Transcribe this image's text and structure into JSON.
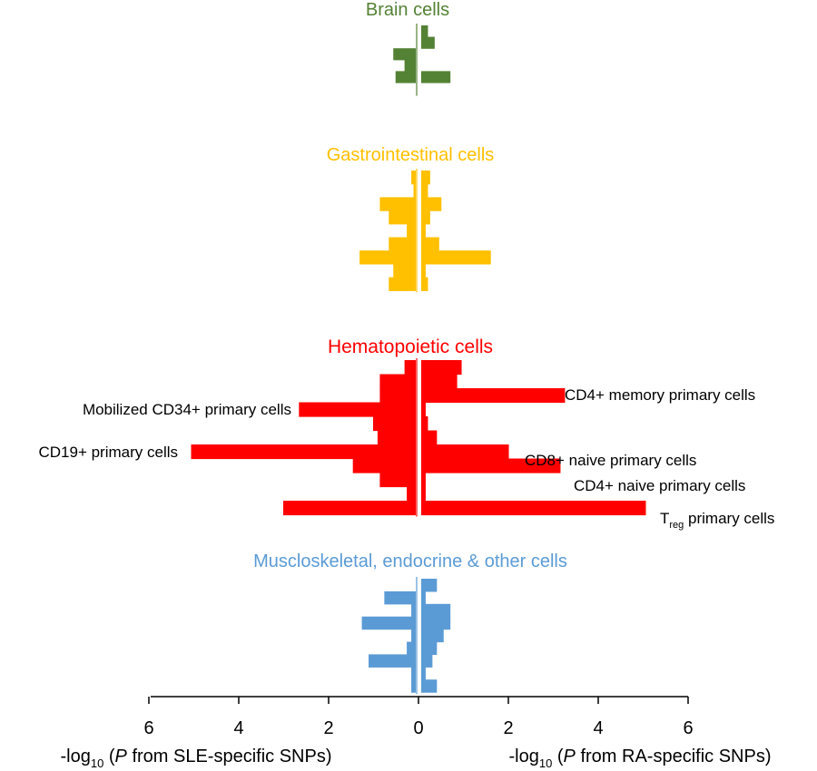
{
  "chart_data": {
    "type": "bar",
    "orientation": "horizontal",
    "layout": "back-to-back",
    "left_series": {
      "name": "SLE-specific SNPs",
      "axis_label_parts": [
        "-log",
        "10",
        " (",
        "P",
        " from SLE-specific SNPs)"
      ]
    },
    "right_series": {
      "name": "RA-specific SNPs",
      "axis_label_parts": [
        "-log",
        "10",
        " (",
        "P",
        " from RA-specific SNPs)"
      ]
    },
    "x_ticks": [
      "6",
      "4",
      "2",
      "0",
      "2",
      "4",
      "6"
    ],
    "x_range": [
      -6,
      6
    ],
    "grid": false,
    "groups": [
      {
        "title": "Brain cells",
        "color": "#548235",
        "left": [
          0,
          0,
          0.5,
          0.25,
          0.45,
          0
        ],
        "right": [
          0.15,
          0.3,
          0,
          0,
          0.65,
          0
        ]
      },
      {
        "title": "Gastrointestinal cells",
        "color": "#FFC000",
        "left": [
          0.1,
          0.05,
          0.8,
          0.6,
          0.2,
          0.6,
          1.25,
          0.5,
          0.6
        ],
        "right": [
          0.2,
          0.15,
          0.45,
          0.2,
          0.1,
          0.4,
          1.55,
          0.1,
          0.15
        ]
      },
      {
        "title": "Hematopoietic cells",
        "color": "#FF0000",
        "left": [
          0.25,
          0.8,
          0.8,
          2.6,
          0.95,
          0.85,
          5.0,
          1.4,
          0.8,
          0.2,
          2.95
        ],
        "right": [
          0.9,
          0.8,
          3.2,
          0.1,
          0.15,
          0.35,
          1.95,
          3.1,
          0.1,
          0.1,
          5.0
        ]
      },
      {
        "title": "Muscloskeletal, endocrine & other cells",
        "color": "#5B9BD5",
        "left": [
          0,
          0.7,
          0.1,
          1.2,
          0.1,
          0.2,
          1.05,
          0.1,
          0.1
        ],
        "right": [
          0.35,
          0.1,
          0.65,
          0.65,
          0.5,
          0.35,
          0.25,
          0.1,
          0.35
        ]
      }
    ],
    "annotations": [
      {
        "text": "CD4+ memory primary cells",
        "group": 2,
        "row": 2,
        "side": "right"
      },
      {
        "text": "Mobilized CD34+ primary cells",
        "group": 2,
        "row": 3,
        "side": "left"
      },
      {
        "text": "CD19+ primary cells",
        "group": 2,
        "row": 6,
        "side": "left"
      },
      {
        "text": "CD8+ naive primary cells",
        "group": 2,
        "row": 7,
        "side": "right"
      },
      {
        "text": "CD4+ naive primary cells",
        "group": 2,
        "row": 8,
        "side": "right"
      },
      {
        "text_parts": [
          "T",
          "reg",
          " primary cells"
        ],
        "group": 2,
        "row": 10,
        "side": "right"
      }
    ]
  }
}
